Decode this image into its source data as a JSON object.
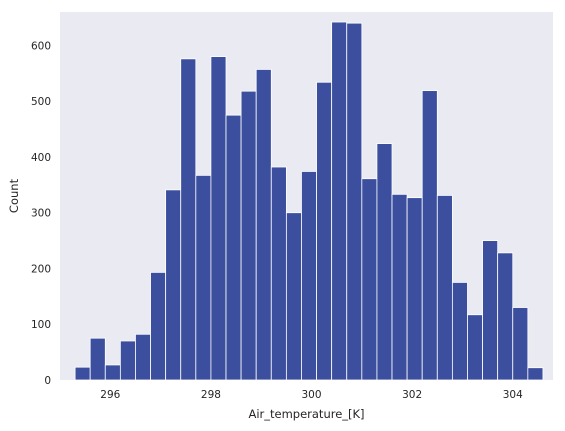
{
  "chart_data": {
    "type": "bar",
    "xlabel": "Air_temperature_[K]",
    "ylabel": "Count",
    "xlim": [
      295.0,
      304.8
    ],
    "ylim": [
      0,
      660
    ],
    "grid": false,
    "bar_color": "#3b4f9e",
    "background_color": "#eaeaf2",
    "bin_width": 0.3,
    "x_ticks": [
      {
        "value": 296,
        "label": "296"
      },
      {
        "value": 298,
        "label": "298"
      },
      {
        "value": 300,
        "label": "300"
      },
      {
        "value": 302,
        "label": "302"
      },
      {
        "value": 304,
        "label": "304"
      }
    ],
    "y_ticks": [
      {
        "value": 0,
        "label": "0"
      },
      {
        "value": 100,
        "label": "100"
      },
      {
        "value": 200,
        "label": "200"
      },
      {
        "value": 300,
        "label": "300"
      },
      {
        "value": 400,
        "label": "400"
      },
      {
        "value": 500,
        "label": "500"
      },
      {
        "value": 600,
        "label": "600"
      }
    ],
    "bins": [
      {
        "x0": 295.3,
        "x1": 295.6,
        "count": 23
      },
      {
        "x0": 295.6,
        "x1": 295.9,
        "count": 75
      },
      {
        "x0": 295.9,
        "x1": 296.2,
        "count": 27
      },
      {
        "x0": 296.2,
        "x1": 296.5,
        "count": 70
      },
      {
        "x0": 296.5,
        "x1": 296.8,
        "count": 82
      },
      {
        "x0": 296.8,
        "x1": 297.1,
        "count": 193
      },
      {
        "x0": 297.1,
        "x1": 297.4,
        "count": 341
      },
      {
        "x0": 297.4,
        "x1": 297.7,
        "count": 576
      },
      {
        "x0": 297.7,
        "x1": 298.0,
        "count": 367
      },
      {
        "x0": 298.0,
        "x1": 298.3,
        "count": 580
      },
      {
        "x0": 298.3,
        "x1": 298.6,
        "count": 475
      },
      {
        "x0": 298.6,
        "x1": 298.9,
        "count": 518
      },
      {
        "x0": 298.9,
        "x1": 299.2,
        "count": 557
      },
      {
        "x0": 299.2,
        "x1": 299.5,
        "count": 382
      },
      {
        "x0": 299.5,
        "x1": 299.8,
        "count": 300
      },
      {
        "x0": 299.8,
        "x1": 300.1,
        "count": 374
      },
      {
        "x0": 300.1,
        "x1": 300.4,
        "count": 534
      },
      {
        "x0": 300.4,
        "x1": 300.7,
        "count": 642
      },
      {
        "x0": 300.7,
        "x1": 301.0,
        "count": 640
      },
      {
        "x0": 301.0,
        "x1": 301.3,
        "count": 361
      },
      {
        "x0": 301.3,
        "x1": 301.6,
        "count": 424
      },
      {
        "x0": 301.6,
        "x1": 301.9,
        "count": 333
      },
      {
        "x0": 301.9,
        "x1": 302.2,
        "count": 327
      },
      {
        "x0": 302.2,
        "x1": 302.5,
        "count": 519
      },
      {
        "x0": 302.5,
        "x1": 302.8,
        "count": 331
      },
      {
        "x0": 302.8,
        "x1": 303.1,
        "count": 175
      },
      {
        "x0": 303.1,
        "x1": 303.4,
        "count": 117
      },
      {
        "x0": 303.4,
        "x1": 303.7,
        "count": 250
      },
      {
        "x0": 303.7,
        "x1": 304.0,
        "count": 228
      },
      {
        "x0": 304.0,
        "x1": 304.3,
        "count": 130
      },
      {
        "x0": 304.3,
        "x1": 304.6,
        "count": 22
      }
    ]
  }
}
